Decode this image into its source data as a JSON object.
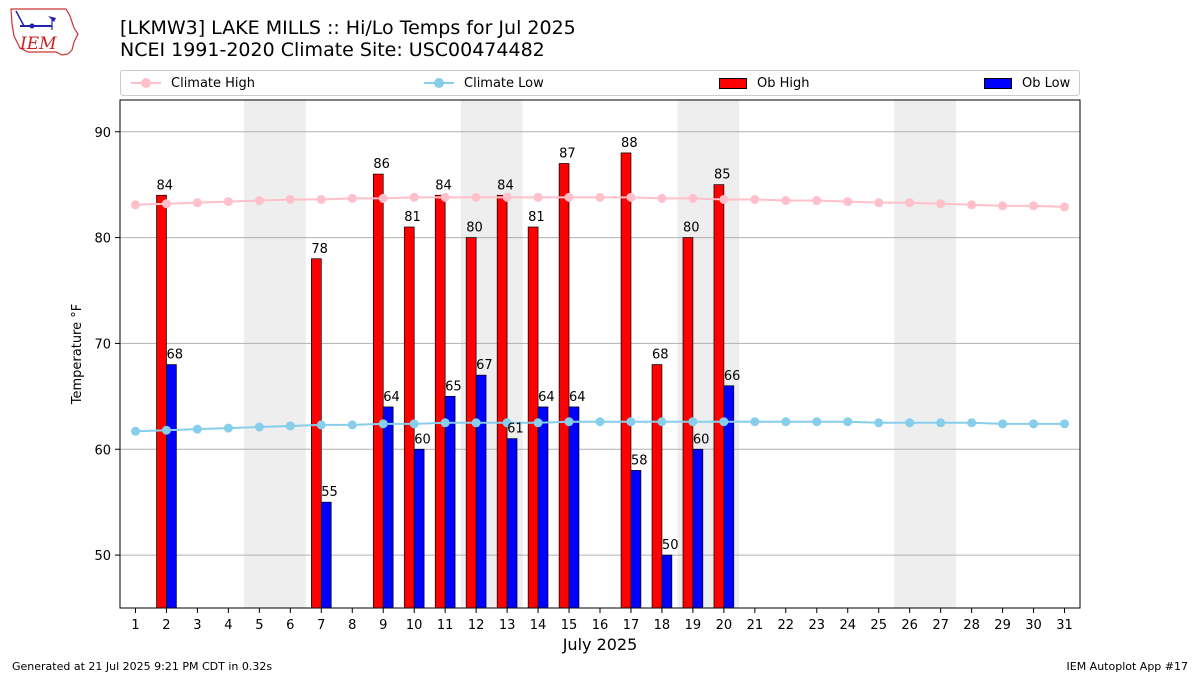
{
  "header": {
    "title_line1": "[LKMW3] LAKE MILLS :: Hi/Lo Temps for Jul 2025",
    "title_line2": "NCEI 1991-2020 Climate Site: USC00474482",
    "logo_text": "IEM"
  },
  "legend": {
    "items": [
      {
        "label": "Climate High",
        "kind": "line",
        "color": "#ffc0cb"
      },
      {
        "label": "Climate Low",
        "kind": "line",
        "color": "#87ceeb"
      },
      {
        "label": "Ob High",
        "kind": "bar",
        "color": "#ff0000"
      },
      {
        "label": "Ob Low",
        "kind": "bar",
        "color": "#0000ff"
      }
    ]
  },
  "chart_data": {
    "type": "bar",
    "title": "[LKMW3] LAKE MILLS :: Hi/Lo Temps for Jul 2025",
    "subtitle": "NCEI 1991-2020 Climate Site: USC00474482",
    "xlabel": "July 2025",
    "ylabel": "Temperature °F",
    "ylim": [
      45,
      93
    ],
    "xlim": [
      0.5,
      31.5
    ],
    "yticks": [
      50,
      60,
      70,
      80,
      90
    ],
    "categories": [
      "1",
      "2",
      "3",
      "4",
      "5",
      "6",
      "7",
      "8",
      "9",
      "10",
      "11",
      "12",
      "13",
      "14",
      "15",
      "16",
      "17",
      "18",
      "19",
      "20",
      "21",
      "22",
      "23",
      "24",
      "25",
      "26",
      "27",
      "28",
      "29",
      "30",
      "31"
    ],
    "grid": "horizontal",
    "legend_position": "top",
    "weekend_shading": [
      [
        5,
        6
      ],
      [
        12,
        13
      ],
      [
        19,
        20
      ],
      [
        26,
        27
      ]
    ],
    "weekend_color": "#eeeeee",
    "series": [
      {
        "name": "Ob High",
        "kind": "bar",
        "color": "#ff0000",
        "values": [
          null,
          84,
          null,
          null,
          null,
          null,
          78,
          null,
          86,
          81,
          84,
          80,
          84,
          81,
          87,
          null,
          88,
          68,
          80,
          85,
          null,
          null,
          null,
          null,
          null,
          null,
          null,
          null,
          null,
          null,
          null
        ]
      },
      {
        "name": "Ob Low",
        "kind": "bar",
        "color": "#0000ff",
        "values": [
          null,
          68,
          null,
          null,
          null,
          null,
          55,
          null,
          64,
          60,
          65,
          67,
          61,
          64,
          64,
          null,
          58,
          50,
          60,
          66,
          null,
          null,
          null,
          null,
          null,
          null,
          null,
          null,
          null,
          null,
          null
        ]
      },
      {
        "name": "Climate High",
        "kind": "line",
        "color": "#ffc0cb",
        "values": [
          83.1,
          83.2,
          83.3,
          83.4,
          83.5,
          83.6,
          83.6,
          83.7,
          83.7,
          83.8,
          83.8,
          83.8,
          83.8,
          83.8,
          83.8,
          83.8,
          83.8,
          83.7,
          83.7,
          83.6,
          83.6,
          83.5,
          83.5,
          83.4,
          83.3,
          83.3,
          83.2,
          83.1,
          83.0,
          83.0,
          82.9
        ]
      },
      {
        "name": "Climate Low",
        "kind": "line",
        "color": "#87ceeb",
        "values": [
          61.7,
          61.8,
          61.9,
          62.0,
          62.1,
          62.2,
          62.3,
          62.3,
          62.4,
          62.4,
          62.5,
          62.5,
          62.5,
          62.5,
          62.6,
          62.6,
          62.6,
          62.6,
          62.6,
          62.6,
          62.6,
          62.6,
          62.6,
          62.6,
          62.5,
          62.5,
          62.5,
          62.5,
          62.4,
          62.4,
          62.4
        ]
      }
    ]
  },
  "footer": {
    "generated": "Generated at 21 Jul 2025 9:21 PM CDT in 0.32s",
    "app": "IEM Autoplot App #17"
  }
}
